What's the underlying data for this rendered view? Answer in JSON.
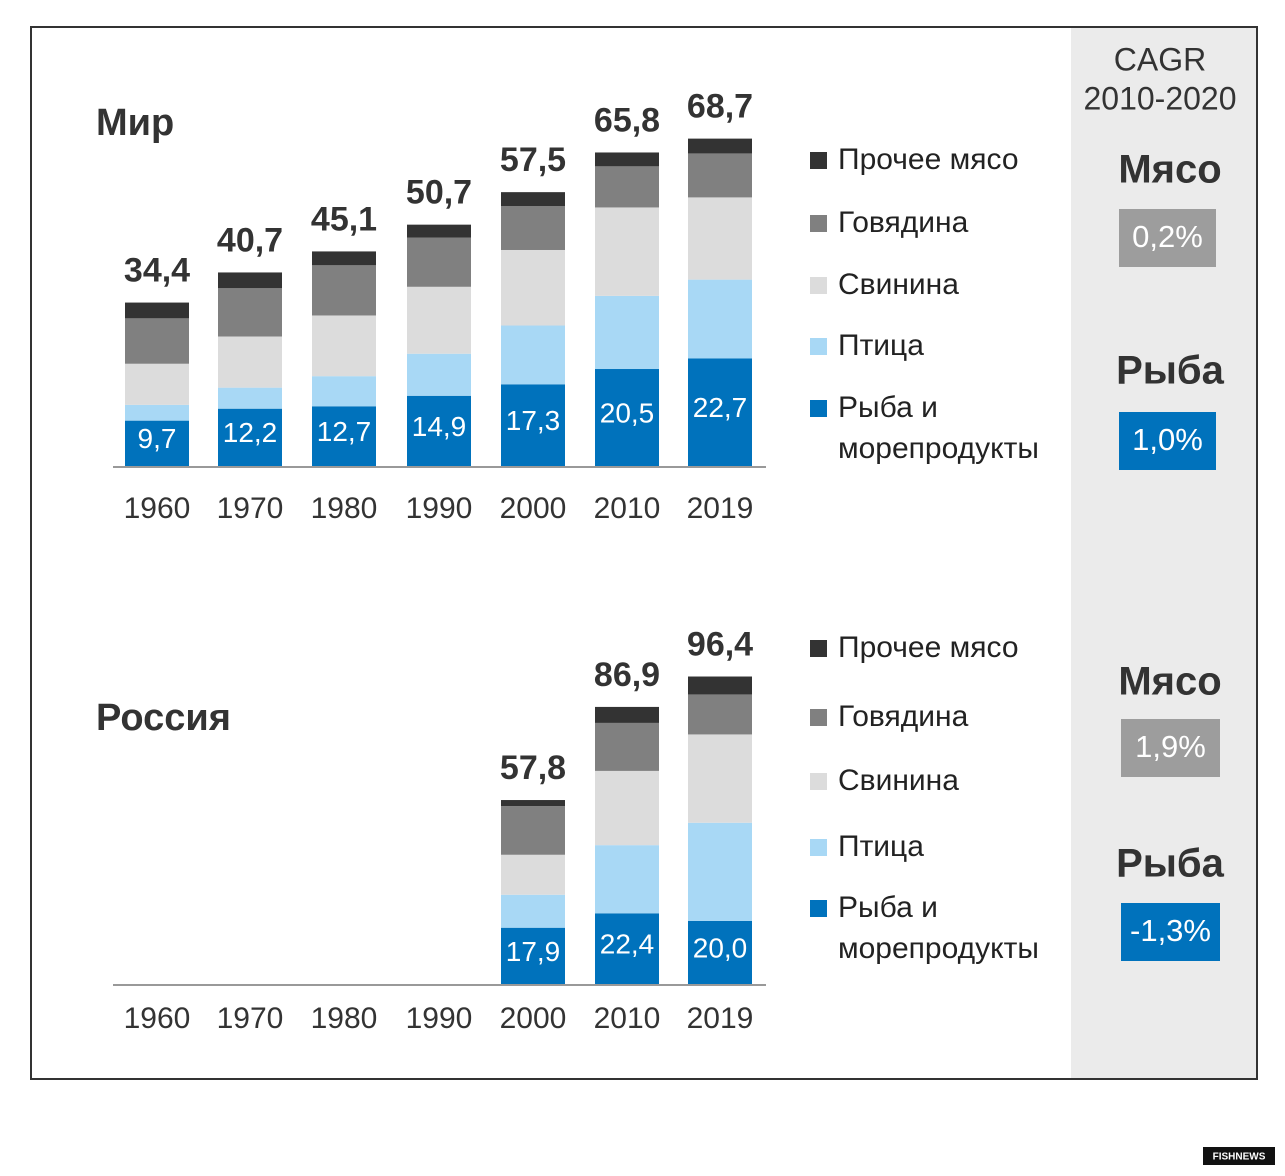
{
  "chart_data": [
    {
      "type": "bar",
      "stacked": true,
      "title": "Мир",
      "categories": [
        "1960",
        "1970",
        "1980",
        "1990",
        "2000",
        "2010",
        "2019"
      ],
      "series": [
        {
          "name": "Рыба и морепродукты",
          "color": "#0072bc",
          "values": [
            9.7,
            12.2,
            12.7,
            14.9,
            17.3,
            20.5,
            22.7
          ],
          "value_labels": [
            "9,7",
            "12,2",
            "12,7",
            "14,9",
            "17,3",
            "20,5",
            "22,7"
          ]
        },
        {
          "name": "Птица",
          "color": "#a8d8f5",
          "values": [
            3.3,
            4.4,
            6.3,
            8.8,
            12.3,
            15.3,
            16.5
          ]
        },
        {
          "name": "Свинина",
          "color": "#dcdcdc",
          "values": [
            8.6,
            10.7,
            12.7,
            14.0,
            15.8,
            18.5,
            17.2
          ]
        },
        {
          "name": "Говядина",
          "color": "#808080",
          "values": [
            9.5,
            10.1,
            10.5,
            10.3,
            9.2,
            8.6,
            9.2
          ]
        },
        {
          "name": "Прочее мясо",
          "color": "#333333",
          "values": [
            3.3,
            3.3,
            2.9,
            2.7,
            2.9,
            2.9,
            3.1
          ]
        }
      ],
      "totals": [
        34.4,
        40.7,
        45.1,
        50.7,
        57.5,
        65.8,
        68.7
      ],
      "total_labels": [
        "34,4",
        "40,7",
        "45,1",
        "50,7",
        "57,5",
        "65,8",
        "68,7"
      ],
      "cagr": [
        {
          "label": "Мясо",
          "value_label": "0,2%",
          "color": "#9d9d9d"
        },
        {
          "label": "Рыба",
          "value_label": "1,0%",
          "color": "#0072bc"
        }
      ]
    },
    {
      "type": "bar",
      "stacked": true,
      "title": "Россия",
      "categories": [
        "1960",
        "1970",
        "1980",
        "1990",
        "2000",
        "2010",
        "2019"
      ],
      "series": [
        {
          "name": "Рыба и морепродукты",
          "color": "#0072bc",
          "values": [
            null,
            null,
            null,
            null,
            17.9,
            22.4,
            20.0
          ],
          "value_labels": [
            null,
            null,
            null,
            null,
            "17,9",
            "22,4",
            "20,0"
          ]
        },
        {
          "name": "Птица",
          "color": "#a8d8f5",
          "values": [
            null,
            null,
            null,
            null,
            10.3,
            21.3,
            30.7
          ]
        },
        {
          "name": "Свинина",
          "color": "#dcdcdc",
          "values": [
            null,
            null,
            null,
            null,
            12.5,
            23.2,
            27.6
          ]
        },
        {
          "name": "Говядина",
          "color": "#808080",
          "values": [
            null,
            null,
            null,
            null,
            15.2,
            15.0,
            12.5
          ]
        },
        {
          "name": "Прочее мясо",
          "color": "#333333",
          "values": [
            null,
            null,
            null,
            null,
            1.9,
            5.0,
            5.6
          ]
        }
      ],
      "totals": [
        null,
        null,
        null,
        null,
        57.8,
        86.9,
        96.4
      ],
      "total_labels": [
        null,
        null,
        null,
        null,
        "57,8",
        "86,9",
        "96,4"
      ],
      "cagr": [
        {
          "label": "Мясо",
          "value_label": "1,9%",
          "color": "#9d9d9d"
        },
        {
          "label": "Рыба",
          "value_label": "-1,3%",
          "color": "#0072bc"
        }
      ]
    }
  ],
  "cagr_header": {
    "title": "CAGR",
    "period": "2010-2020"
  },
  "watermark": "FISHNEWS"
}
